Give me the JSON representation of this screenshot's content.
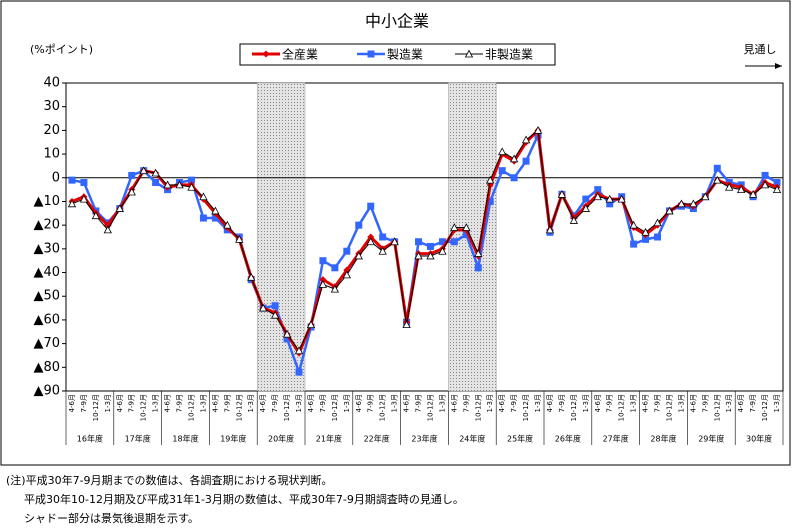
{
  "chart_data": {
    "type": "line",
    "title": "中小企業",
    "y_label": "(%ポイント)",
    "forecast_label": "見通し",
    "categories": [
      "4-6月",
      "7-9月",
      "10-12月",
      "1-3月",
      "4-6月",
      "7-9月",
      "10-12月",
      "1-3月",
      "4-6月",
      "7-9月",
      "10-12月",
      "1-3月",
      "4-6月",
      "7-9月",
      "10-12月",
      "1-3月",
      "4-6月",
      "7-9月",
      "10-12月",
      "1-3月",
      "4-6月",
      "7-9月",
      "10-12月",
      "1-3月",
      "4-6月",
      "7-9月",
      "10-12月",
      "1-3月",
      "4-6月",
      "7-9月",
      "10-12月",
      "1-3月",
      "4-6月",
      "7-9月",
      "10-12月",
      "1-3月",
      "4-6月",
      "7-9月",
      "10-12月",
      "1-3月",
      "4-6月",
      "7-9月",
      "10-12月",
      "1-3月",
      "4-6月",
      "7-9月",
      "10-12月",
      "1-3月",
      "4-6月",
      "7-9月",
      "10-12月",
      "1-3月",
      "4-6月",
      "7-9月",
      "10-12月",
      "1-3月",
      "4-6月",
      "7-9月",
      "10-12月",
      "1-3月"
    ],
    "groups": [
      "16年度",
      "17年度",
      "18年度",
      "19年度",
      "20年度",
      "21年度",
      "22年度",
      "23年度",
      "24年度",
      "25年度",
      "26年度",
      "27年度",
      "28年度",
      "29年度",
      "30年度"
    ],
    "shaded": [
      [
        16,
        19
      ],
      [
        32,
        35
      ]
    ],
    "series": [
      {
        "name": "全産業",
        "color": "#e00000",
        "marker": "diamond",
        "values": [
          -10,
          -8,
          -15,
          -20,
          -13,
          -5,
          3,
          2,
          -4,
          -3,
          -3,
          -9,
          -15,
          -21,
          -26,
          -42,
          -55,
          -57,
          -66,
          -74,
          -62,
          -43,
          -46,
          -39,
          -32,
          -25,
          -30,
          -27,
          -61,
          -32,
          -32,
          -30,
          -22,
          -22,
          -33,
          -3,
          10,
          7,
          15,
          20,
          -22,
          -7,
          -17,
          -12,
          -7,
          -9,
          -9,
          -21,
          -24,
          -20,
          -14,
          -11,
          -12,
          -8,
          -1,
          -3,
          -4,
          -7,
          -2,
          -4
        ]
      },
      {
        "name": "製造業",
        "color": "#3366ff",
        "marker": "square",
        "values": [
          -1,
          -2,
          -14,
          -19,
          -13,
          1,
          3,
          -2,
          -5,
          -2,
          -1,
          -17,
          -17,
          -22,
          -25,
          -43,
          -55,
          -54,
          -68,
          -82,
          -63,
          -35,
          -38,
          -31,
          -20,
          -12,
          -25,
          -27,
          -61,
          -27,
          -29,
          -27,
          -27,
          -24,
          -38,
          -10,
          3,
          0,
          7,
          18,
          -23,
          -7,
          -16,
          -9,
          -5,
          -11,
          -8,
          -28,
          -26,
          -25,
          -14,
          -12,
          -13,
          -8,
          4,
          -2,
          -3,
          -8,
          1,
          -2
        ]
      },
      {
        "name": "非製造業",
        "color": "#000000",
        "marker": "triangle",
        "values": [
          -11,
          -9,
          -16,
          -22,
          -13,
          -6,
          3,
          2,
          -3,
          -3,
          -4,
          -8,
          -14,
          -20,
          -26,
          -42,
          -55,
          -58,
          -66,
          -73,
          -62,
          -45,
          -47,
          -41,
          -33,
          -27,
          -31,
          -27,
          -62,
          -33,
          -33,
          -31,
          -21,
          -21,
          -32,
          -1,
          11,
          8,
          16,
          20,
          -22,
          -7,
          -18,
          -13,
          -8,
          -9,
          -9,
          -20,
          -23,
          -19,
          -14,
          -11,
          -11,
          -8,
          -1,
          -4,
          -5,
          -7,
          -3,
          -5
        ]
      }
    ],
    "ylim": [
      -90,
      40
    ],
    "yticks": [
      40,
      30,
      20,
      10,
      0,
      {
        "value": -10,
        "label": "▲10"
      },
      {
        "value": -20,
        "label": "▲20"
      },
      {
        "value": -30,
        "label": "▲30"
      },
      {
        "value": -40,
        "label": "▲40"
      },
      {
        "value": -50,
        "label": "▲50"
      },
      {
        "value": -60,
        "label": "▲60"
      },
      {
        "value": -70,
        "label": "▲70"
      },
      {
        "value": -80,
        "label": "▲80"
      },
      {
        "value": -90,
        "label": "▲90"
      }
    ],
    "notes": [
      "(注)平成30年7-9月期までの数値は、各調査期における現状判断。",
      "平成30年10-12月期及び平成31年1-3月期の数値は、平成30年7-9月期調査時の見通し。",
      "シャドー部分は景気後退期を示す。"
    ]
  }
}
